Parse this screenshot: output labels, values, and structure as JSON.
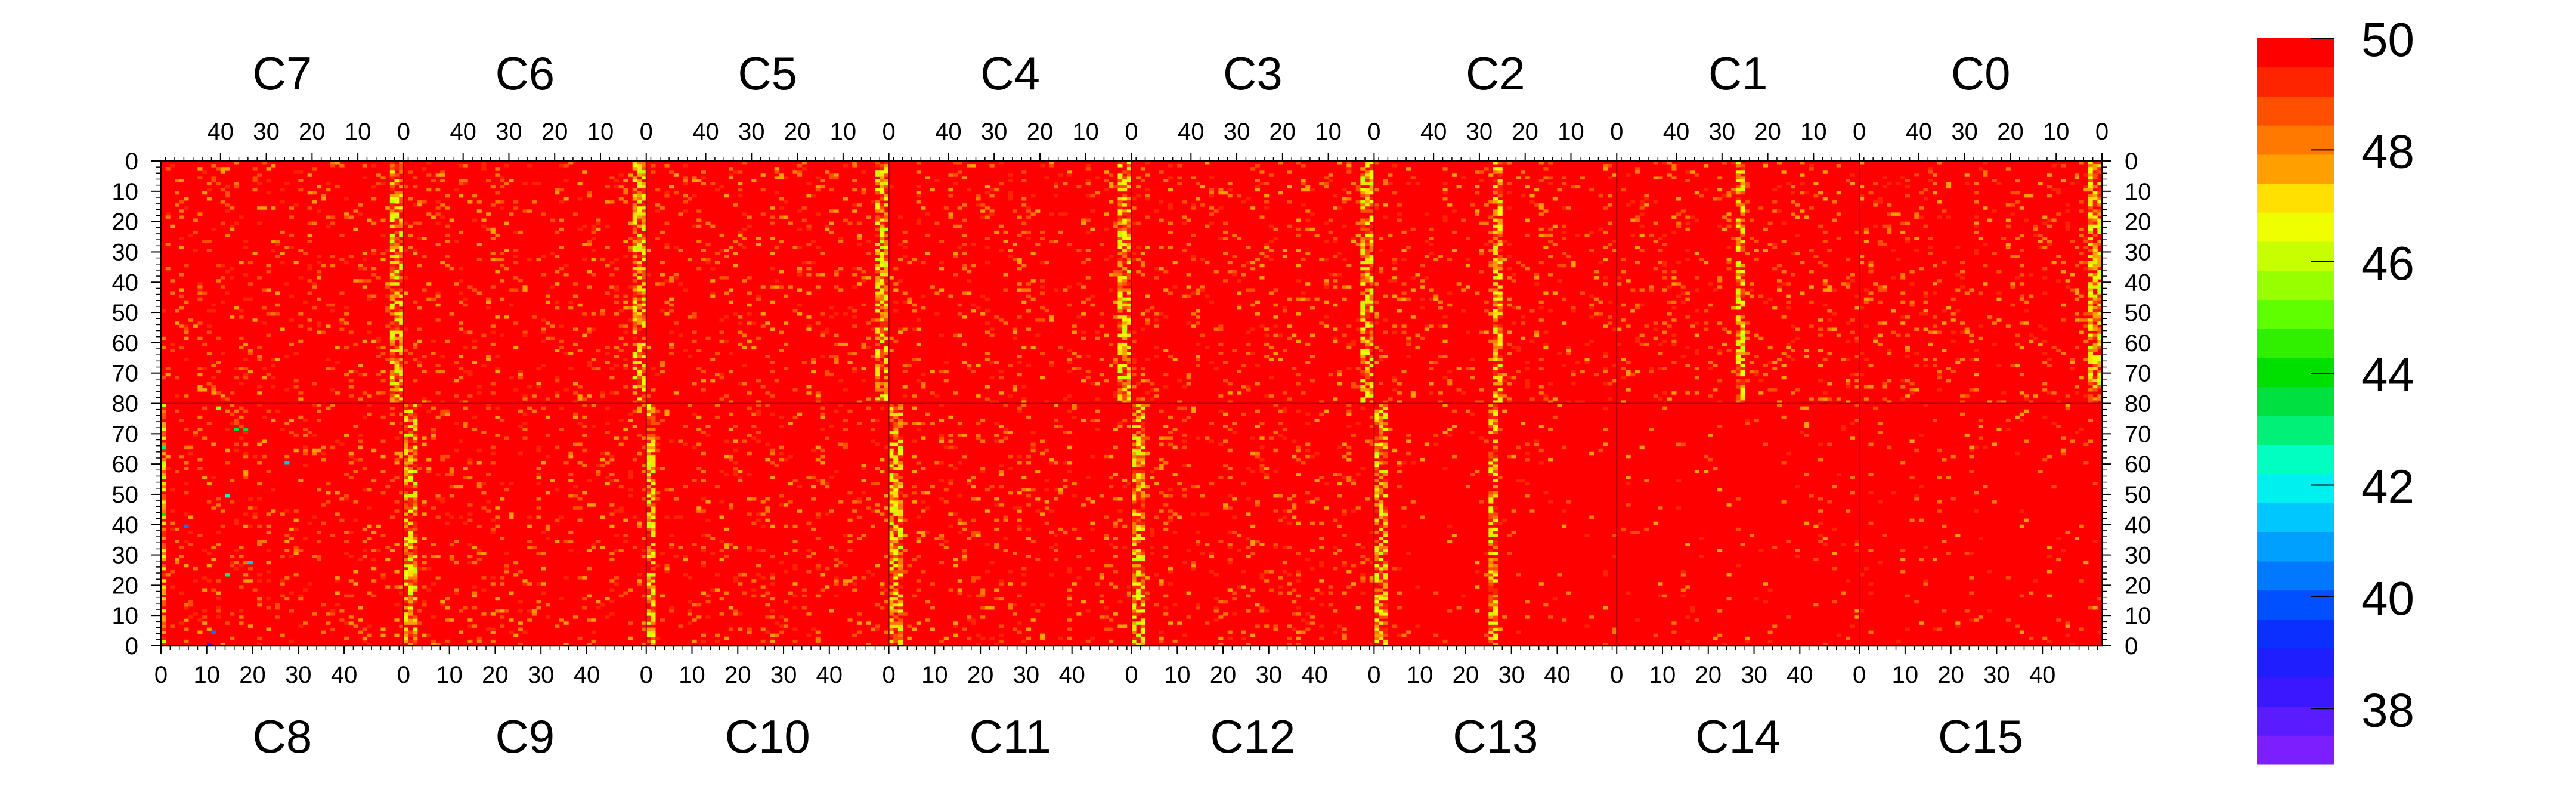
{
  "chart_data": {
    "type": "heatmap",
    "title": "",
    "top_panels": [
      "C7",
      "C6",
      "C5",
      "C4",
      "C3",
      "C2",
      "C1",
      "C0"
    ],
    "bottom_panels": [
      "C8",
      "C9",
      "C10",
      "C11",
      "C12",
      "C13",
      "C14",
      "C15"
    ],
    "panel_x_ticks_top": [
      "40",
      "30",
      "20",
      "10",
      "0"
    ],
    "panel_x_ticks_bottom": [
      "0",
      "10",
      "20",
      "30",
      "40"
    ],
    "top_x_range": [
      53,
      0
    ],
    "bottom_x_range": [
      0,
      53
    ],
    "y_ticks": [
      "0",
      "10",
      "20",
      "30",
      "40",
      "50",
      "60",
      "70",
      "80"
    ],
    "y_labels_bottom_half": [
      "70",
      "60",
      "50",
      "40",
      "30",
      "20",
      "10",
      "0"
    ],
    "y_range_each_half": [
      0,
      80
    ],
    "colorbar": {
      "min": 37,
      "max": 50,
      "tick_labels": [
        "50",
        "48",
        "46",
        "44",
        "42",
        "40",
        "38"
      ],
      "tick_values": [
        50,
        48,
        46,
        44,
        42,
        40,
        38
      ],
      "palette": [
        "#7B1FFF",
        "#5A1BFF",
        "#3A17FF",
        "#1E1EFF",
        "#0A2FFF",
        "#0050FF",
        "#0078FF",
        "#00A0FF",
        "#00C8FF",
        "#00F0F0",
        "#00FFC0",
        "#00F078",
        "#00E040",
        "#00E000",
        "#30F000",
        "#60FF00",
        "#98FF00",
        "#C8FF00",
        "#F0FF00",
        "#FFE000",
        "#FFA000",
        "#FF7800",
        "#FF5000",
        "#FF2400",
        "#FF0000"
      ]
    },
    "background_level": 50,
    "bright_columns": {
      "C7": [
        0,
        1,
        2
      ],
      "C6": [
        0,
        1,
        2
      ],
      "C5": [
        0,
        1,
        2
      ],
      "C4": [
        0,
        1,
        2
      ],
      "C3": [
        0,
        1,
        2
      ],
      "C2": [
        25,
        26
      ],
      "C1": [
        25,
        26
      ],
      "C0": [
        0,
        1,
        2
      ],
      "C8": [
        0
      ],
      "C9": [
        0,
        1,
        2
      ],
      "C10": [
        0,
        1
      ],
      "C11": [
        0,
        1,
        2
      ],
      "C12": [
        0,
        1,
        2
      ],
      "C13": [
        0,
        1,
        2,
        25,
        26
      ]
    }
  }
}
